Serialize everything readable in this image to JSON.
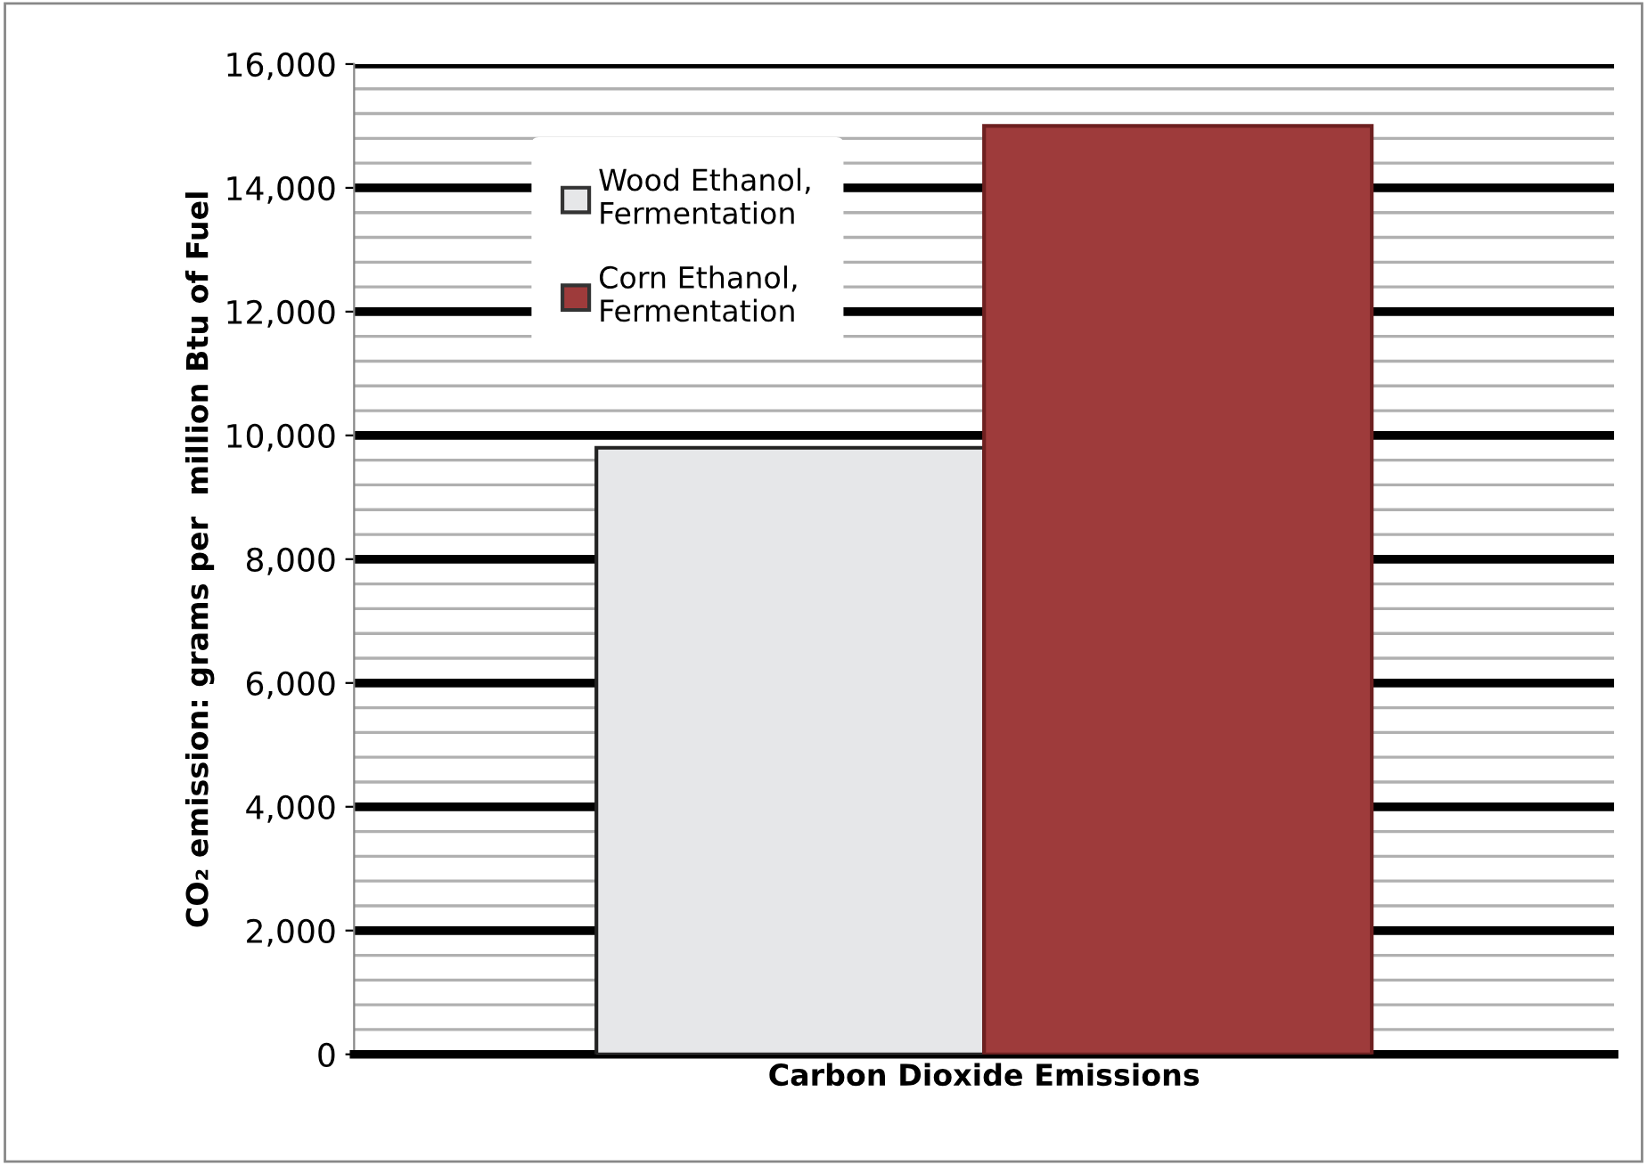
{
  "chart_data": {
    "type": "bar",
    "ylabel": "CO₂ emission: grams per  million Btu of Fuel",
    "categories": [
      "Carbon Dioxide Emissions"
    ],
    "series": [
      {
        "name": "Wood Ethanol,\nFermentation",
        "color": "#e6e7e9",
        "values": [
          9800
        ]
      },
      {
        "name": "Corn Ethanol,\nFermentation",
        "color": "#9e3b3b",
        "values": [
          15000
        ]
      }
    ],
    "ylim": [
      0,
      16000
    ],
    "yticks": [
      0,
      {
        "value": 2000,
        "label": "2,000"
      },
      {
        "value": 4000,
        "label": "4,000"
      },
      {
        "value": 6000,
        "label": "6,000"
      },
      {
        "value": 8000,
        "label": "8,000"
      },
      {
        "value": 10000,
        "label": "10,000"
      },
      {
        "value": 12000,
        "label": "12,000"
      },
      {
        "value": 14000,
        "label": "14,000"
      },
      {
        "value": 16000,
        "label": "16,000"
      }
    ],
    "grid": "y",
    "legend": "top left"
  }
}
